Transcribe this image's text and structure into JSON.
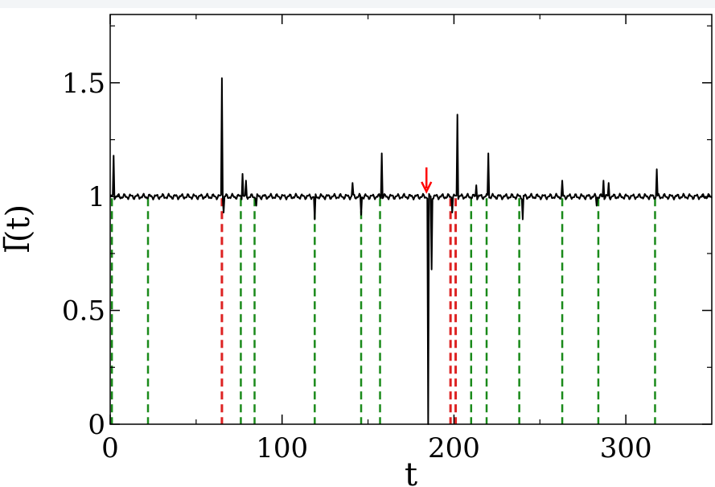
{
  "chart_data": {
    "type": "line",
    "title": "",
    "xlabel": "t",
    "ylabel": "l(t)",
    "ylabel_overline": true,
    "xlim": [
      0,
      350
    ],
    "ylim": [
      0,
      1.8
    ],
    "x_ticks": [
      0,
      100,
      200,
      300
    ],
    "x_tick_labels": [
      "0",
      "100",
      "200",
      "300"
    ],
    "y_ticks": [
      0,
      0.5,
      1,
      1.5
    ],
    "y_tick_labels": [
      "0",
      "0.5",
      "1",
      "1.5"
    ],
    "grid": false,
    "baseline": 1.0,
    "series": [
      {
        "color": "#000000",
        "spikes": [
          {
            "t": 2,
            "value": 1.18
          },
          {
            "t": 65,
            "value": 1.52
          },
          {
            "t": 66,
            "value": 0.93
          },
          {
            "t": 77,
            "value": 1.1
          },
          {
            "t": 79,
            "value": 1.07
          },
          {
            "t": 85,
            "value": 0.96
          },
          {
            "t": 119,
            "value": 0.9
          },
          {
            "t": 141,
            "value": 1.06
          },
          {
            "t": 146,
            "value": 0.92
          },
          {
            "t": 158,
            "value": 1.19
          },
          {
            "t": 185,
            "value": 0.0
          },
          {
            "t": 187,
            "value": 0.68
          },
          {
            "t": 199,
            "value": 0.93
          },
          {
            "t": 202,
            "value": 1.36
          },
          {
            "t": 213,
            "value": 1.05
          },
          {
            "t": 220,
            "value": 1.19
          },
          {
            "t": 240,
            "value": 0.9
          },
          {
            "t": 263,
            "value": 1.07
          },
          {
            "t": 283,
            "value": 0.96
          },
          {
            "t": 287,
            "value": 1.07
          },
          {
            "t": 290,
            "value": 1.06
          },
          {
            "t": 318,
            "value": 1.12
          }
        ]
      }
    ],
    "vertical_markers": {
      "green": [
        1,
        22,
        76,
        84,
        119,
        146,
        157,
        210,
        219,
        238,
        263,
        284,
        317
      ],
      "red": [
        65,
        198,
        201
      ]
    },
    "annotation_arrow": {
      "t": 184,
      "color": "#ff0000"
    },
    "colors": {
      "axes": "#000000",
      "green_marker": "#1a8a1a",
      "red_marker": "#dd2222",
      "arrow": "#ff0000"
    }
  }
}
